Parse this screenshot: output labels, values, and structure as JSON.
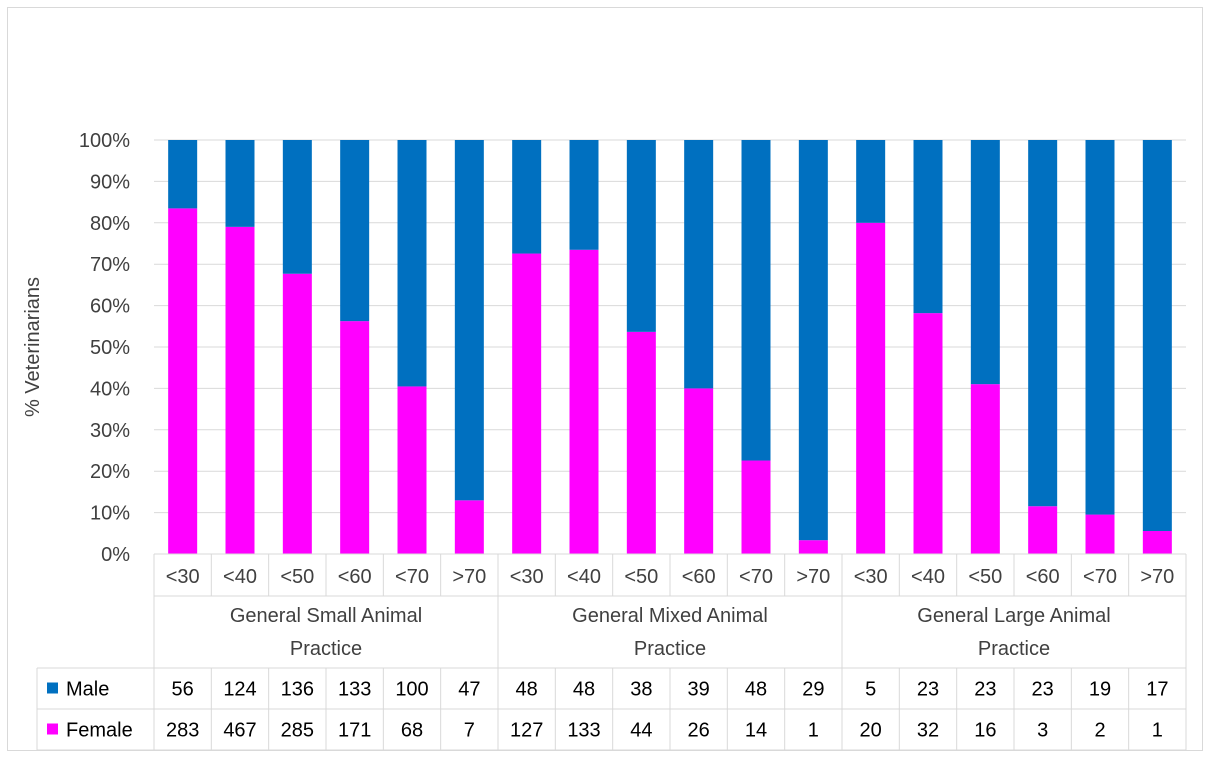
{
  "chart_data": {
    "type": "bar",
    "stacked": "percent",
    "ylabel": "% Veterinarians",
    "xlabel": "",
    "ylim": [
      0,
      100
    ],
    "y_ticks": [
      "0%",
      "10%",
      "20%",
      "30%",
      "40%",
      "50%",
      "60%",
      "70%",
      "80%",
      "90%",
      "100%"
    ],
    "grid": true,
    "legend": "data-table",
    "groups": [
      {
        "label_lines": [
          "General Small Animal",
          "Practice"
        ],
        "categories": [
          "<30",
          "<40",
          "<50",
          "<60",
          "<70",
          ">70"
        ]
      },
      {
        "label_lines": [
          "General Mixed Animal",
          "Practice"
        ],
        "categories": [
          "<30",
          "<40",
          "<50",
          "<60",
          "<70",
          ">70"
        ]
      },
      {
        "label_lines": [
          "General Large Animal",
          "Practice"
        ],
        "categories": [
          "<30",
          "<40",
          "<50",
          "<60",
          "<70",
          ">70"
        ]
      }
    ],
    "series": [
      {
        "name": "Male",
        "color": "#0070c0",
        "values": [
          56,
          124,
          136,
          133,
          100,
          47,
          48,
          48,
          38,
          39,
          48,
          29,
          5,
          23,
          23,
          23,
          19,
          17
        ]
      },
      {
        "name": "Female",
        "color": "#ff00ff",
        "values": [
          283,
          467,
          285,
          171,
          68,
          7,
          127,
          133,
          44,
          26,
          14,
          1,
          20,
          32,
          16,
          3,
          2,
          1
        ]
      }
    ]
  }
}
